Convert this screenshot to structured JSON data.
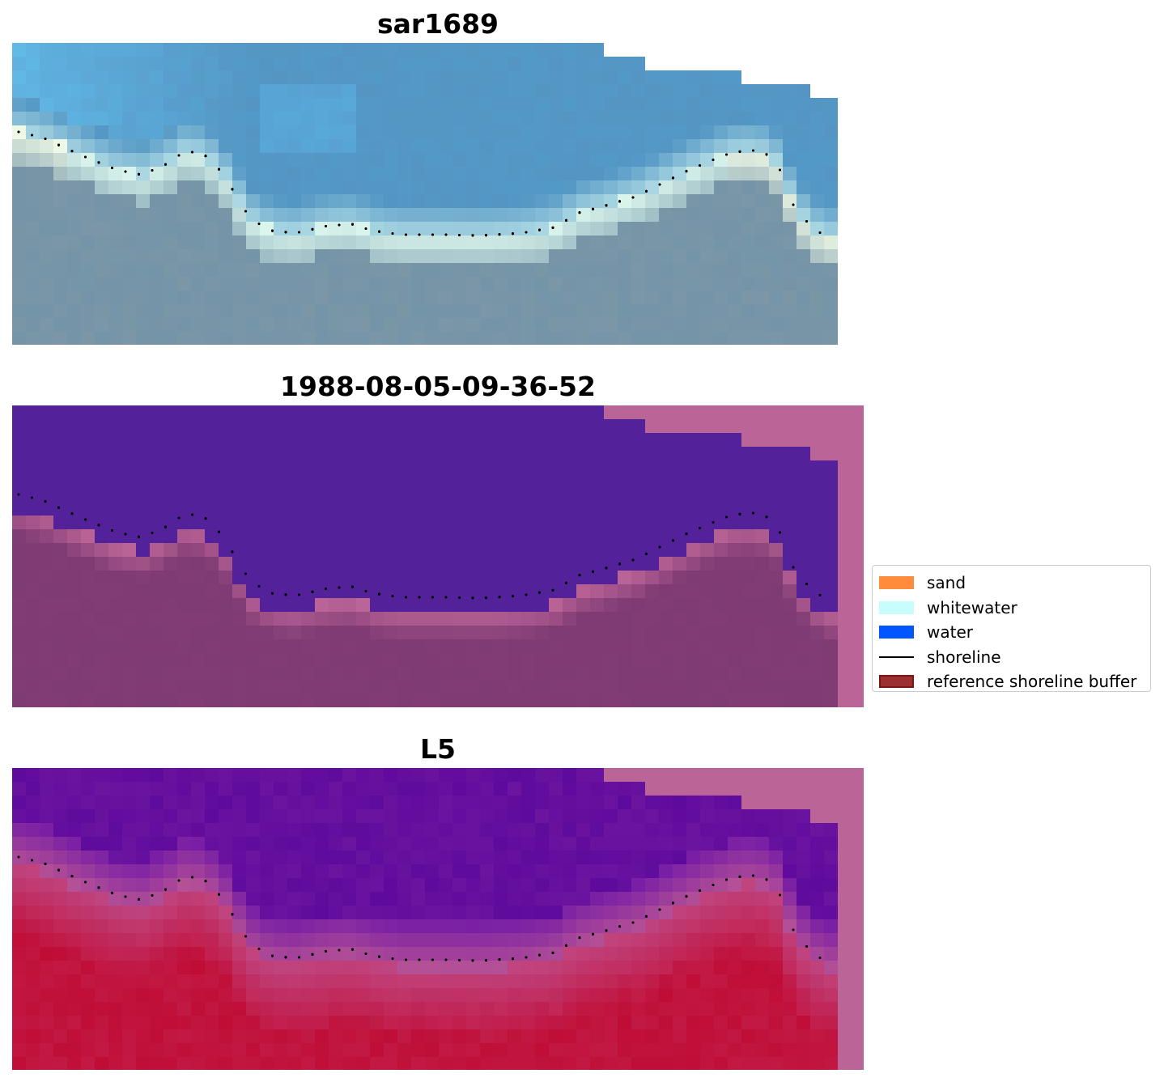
{
  "figure": {
    "panels": [
      {
        "id": "rgb",
        "title": "sar1689"
      },
      {
        "id": "classification",
        "title": "1988-08-05-09-36-52"
      },
      {
        "id": "index",
        "title": "L5"
      }
    ]
  },
  "legend": {
    "placement": "right",
    "items": [
      {
        "label": "sand",
        "kind": "patch",
        "color": "#ff8c3a"
      },
      {
        "label": "whitewater",
        "kind": "patch",
        "color": "#c8fdfd"
      },
      {
        "label": "water",
        "kind": "patch",
        "color": "#0256ff"
      },
      {
        "label": "shoreline",
        "kind": "line",
        "color": "#000000"
      },
      {
        "label": "reference shoreline buffer",
        "kind": "patch",
        "color": "#9c2f2f",
        "edge": "#7a1515"
      }
    ]
  },
  "colors": {
    "classification_water": "#53229a",
    "classification_land": "#7f3b74",
    "buffer_edge": "#bb6497",
    "index_low": "#5e0a9c",
    "index_high": "#bf0d36",
    "shoreline_points": "#000000"
  }
}
